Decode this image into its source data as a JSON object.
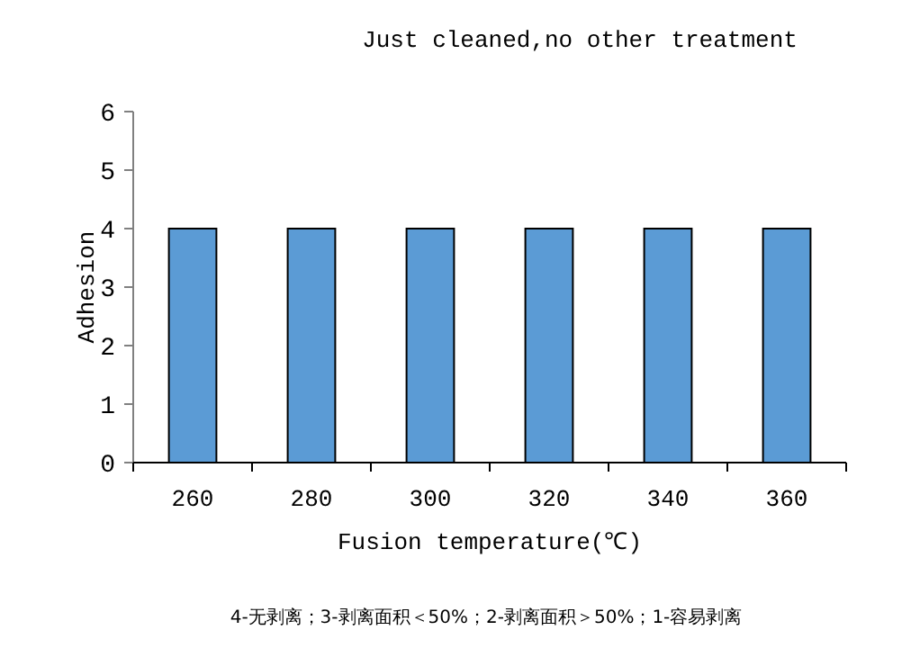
{
  "chart_data": {
    "type": "bar",
    "title": "Just cleaned,no other treatment",
    "xlabel": "Fusion temperature(℃)",
    "ylabel": "Adhesion",
    "categories": [
      "260",
      "280",
      "300",
      "320",
      "340",
      "360"
    ],
    "values": [
      4,
      4,
      4,
      4,
      4,
      4
    ],
    "color": "#5b9bd5",
    "ylim": [
      0,
      6
    ],
    "yticks": [
      0,
      1,
      2,
      3,
      4,
      5,
      6
    ],
    "grid": false,
    "annotations": [
      "4-无剥离；3-剥离面积＜50%；2-剥离面积＞50%；1-容易剥离"
    ]
  }
}
